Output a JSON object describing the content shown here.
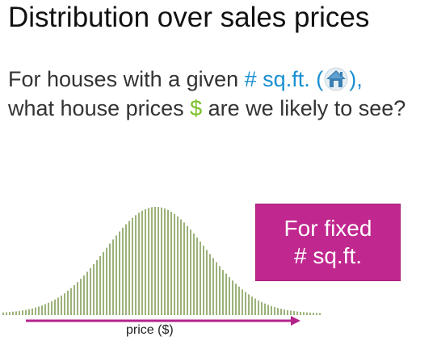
{
  "slide": {
    "title": "Distribution over sales prices",
    "question": {
      "line1_prefix": "For houses with a given ",
      "line1_highlight": "# sq.ft. (",
      "line1_suffix": "),",
      "line2_prefix": "what house prices ",
      "line2_dollar": "$",
      "line2_suffix": " are we likely to see?"
    },
    "box": {
      "line1": "For fixed",
      "line2": "# sq.ft."
    },
    "axis_label": "price ($)"
  },
  "colors": {
    "highlight_blue": "#1a8fd0",
    "dollar_green": "#7cbf2a",
    "box_magenta": "#c0278f",
    "bars": "#9bb27a",
    "arrow": "#b5248a"
  },
  "icons": {
    "house": "house-icon"
  }
}
